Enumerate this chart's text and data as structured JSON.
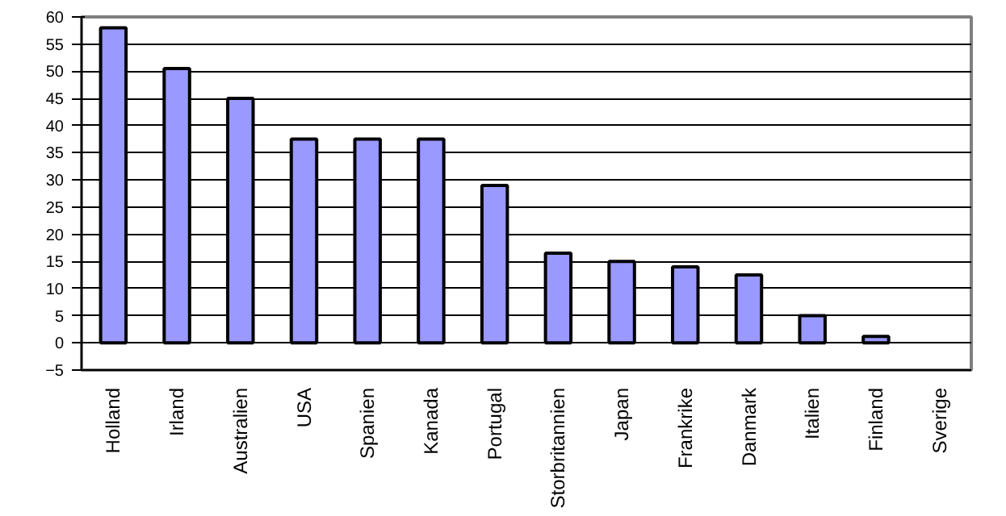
{
  "chart_data": {
    "type": "bar",
    "categories": [
      "Holland",
      "Irland",
      "Australien",
      "USA",
      "Spanien",
      "Kanada",
      "Portugal",
      "Storbritannien",
      "Japan",
      "Frankrike",
      "Danmark",
      "Italien",
      "Finland",
      "Sverige"
    ],
    "values": [
      58,
      50.5,
      45,
      37.5,
      37.5,
      37.5,
      29,
      16.5,
      15,
      14,
      12.5,
      5,
      1.2,
      0
    ],
    "color": "#9999ff",
    "ylim": [
      -5,
      60
    ],
    "yticks": [
      -5,
      0,
      5,
      10,
      15,
      20,
      25,
      30,
      35,
      40,
      45,
      50,
      55,
      60
    ],
    "grid": "y"
  }
}
